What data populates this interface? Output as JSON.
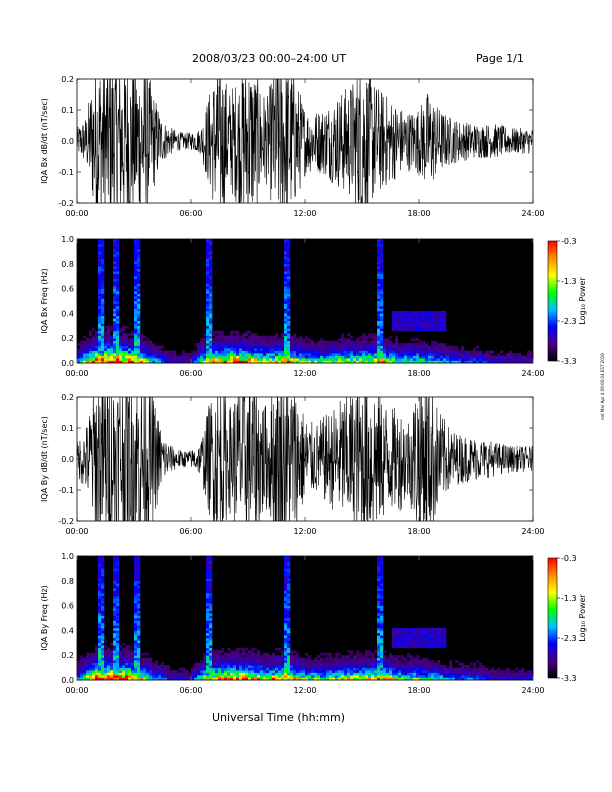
{
  "header": {
    "title": "2008/03/23  00:00–24:00 UT",
    "page": "Page 1/1"
  },
  "footer": {
    "xlabel": "Universal Time (hh:mm)"
  },
  "side_note": "not Mar Apr 4 09:00:04 EST 2019",
  "chart_data": [
    {
      "type": "line",
      "ylabel": "IQA Bx dB/dt (nT/sec)",
      "xlim": [
        "00:00",
        "24:00"
      ],
      "ylim": [
        -0.2,
        0.2
      ],
      "x_ticks": [
        "00:00",
        "06:00",
        "12:00",
        "18:00",
        "24:00"
      ],
      "y_ticks": [
        "-0.2",
        "-0.1",
        "0.0",
        "0.1",
        "0.2"
      ],
      "series_color": "#000000",
      "envelope": {
        "hours": [
          0.0,
          0.5,
          1.0,
          1.5,
          2.0,
          2.5,
          3.0,
          3.5,
          4.0,
          4.5,
          5.0,
          5.5,
          6.0,
          6.5,
          7.0,
          7.5,
          8.0,
          8.5,
          9.0,
          9.5,
          10.0,
          10.5,
          11.0,
          11.5,
          12.0,
          12.5,
          13.0,
          13.5,
          14.0,
          14.5,
          15.0,
          15.5,
          16.0,
          16.5,
          17.0,
          17.5,
          18.0,
          18.5,
          19.0,
          19.5,
          20.0,
          21.0,
          22.0,
          23.0,
          24.0
        ],
        "amplitude": [
          0.03,
          0.06,
          0.2,
          0.2,
          0.2,
          0.2,
          0.18,
          0.2,
          0.12,
          0.05,
          0.03,
          0.02,
          0.02,
          0.03,
          0.12,
          0.2,
          0.12,
          0.15,
          0.2,
          0.15,
          0.1,
          0.2,
          0.2,
          0.15,
          0.08,
          0.07,
          0.08,
          0.1,
          0.12,
          0.14,
          0.2,
          0.15,
          0.12,
          0.1,
          0.08,
          0.07,
          0.08,
          0.12,
          0.08,
          0.06,
          0.05,
          0.04,
          0.04,
          0.03,
          0.03
        ]
      }
    },
    {
      "type": "heatmap",
      "ylabel": "IQA Bx Freq (Hz)",
      "xlim": [
        "00:00",
        "24:00"
      ],
      "ylim": [
        0.0,
        1.0
      ],
      "x_ticks": [
        "00:00",
        "06:00",
        "12:00",
        "18:00",
        "24:00"
      ],
      "y_ticks": [
        "0.0",
        "0.2",
        "0.4",
        "0.6",
        "0.8",
        "1.0"
      ],
      "colorbar": {
        "label": "Log₁₀ Power",
        "ticks": [
          "-0.3",
          "-1.3",
          "-2.3",
          "-3.3"
        ],
        "range": [
          -3.3,
          -0.3
        ],
        "colors": [
          "#000000",
          "#4b0082",
          "#0000ff",
          "#00bfff",
          "#00ff00",
          "#ffff00",
          "#ff8c00",
          "#ff0000"
        ]
      },
      "activity": {
        "hours": [
          0,
          1,
          2,
          3,
          4,
          5,
          6,
          7,
          8,
          9,
          10,
          11,
          12,
          13,
          14,
          15,
          16,
          17,
          18,
          19,
          20,
          21,
          22,
          23,
          24
        ],
        "level": [
          0.3,
          0.9,
          1.0,
          0.8,
          0.4,
          0.2,
          0.2,
          0.7,
          0.8,
          0.8,
          0.6,
          0.8,
          0.5,
          0.5,
          0.6,
          0.6,
          0.7,
          0.5,
          0.5,
          0.4,
          0.3,
          0.3,
          0.2,
          0.2,
          0.2
        ]
      },
      "spikes_hours": [
        1.2,
        2.1,
        3.1,
        7.0,
        11.0,
        16.0
      ]
    },
    {
      "type": "line",
      "ylabel": "IQA By dB/dt (nT/sec)",
      "xlim": [
        "00:00",
        "24:00"
      ],
      "ylim": [
        -0.2,
        0.2
      ],
      "x_ticks": [
        "00:00",
        "06:00",
        "12:00",
        "18:00",
        "24:00"
      ],
      "y_ticks": [
        "-0.2",
        "-0.1",
        "0.0",
        "0.1",
        "0.2"
      ],
      "series_color": "#000000",
      "envelope": {
        "hours": [
          0.0,
          0.5,
          1.0,
          1.5,
          2.0,
          2.5,
          3.0,
          3.5,
          4.0,
          4.5,
          5.0,
          5.5,
          6.0,
          6.5,
          7.0,
          7.5,
          8.0,
          8.5,
          9.0,
          9.5,
          10.0,
          10.5,
          11.0,
          11.5,
          12.0,
          12.5,
          13.0,
          13.5,
          14.0,
          14.5,
          15.0,
          15.5,
          16.0,
          16.5,
          17.0,
          17.5,
          18.0,
          18.5,
          19.0,
          19.5,
          20.0,
          21.0,
          22.0,
          23.0,
          24.0
        ],
        "amplitude": [
          0.04,
          0.08,
          0.2,
          0.2,
          0.2,
          0.2,
          0.2,
          0.2,
          0.15,
          0.06,
          0.03,
          0.02,
          0.02,
          0.04,
          0.14,
          0.2,
          0.12,
          0.18,
          0.2,
          0.18,
          0.12,
          0.2,
          0.2,
          0.18,
          0.1,
          0.08,
          0.1,
          0.12,
          0.15,
          0.16,
          0.2,
          0.2,
          0.15,
          0.12,
          0.12,
          0.1,
          0.2,
          0.2,
          0.12,
          0.08,
          0.06,
          0.05,
          0.04,
          0.03,
          0.03
        ]
      }
    },
    {
      "type": "heatmap",
      "ylabel": "IQA By Freq (Hz)",
      "xlim": [
        "00:00",
        "24:00"
      ],
      "ylim": [
        0.0,
        1.0
      ],
      "x_ticks": [
        "00:00",
        "06:00",
        "12:00",
        "18:00",
        "24:00"
      ],
      "y_ticks": [
        "0.0",
        "0.2",
        "0.4",
        "0.6",
        "0.8",
        "1.0"
      ],
      "colorbar": {
        "label": "Log₁₀ Power",
        "ticks": [
          "-0.3",
          "-1.3",
          "-2.3",
          "-3.3"
        ],
        "range": [
          -3.3,
          -0.3
        ],
        "colors": [
          "#000000",
          "#4b0082",
          "#0000ff",
          "#00bfff",
          "#00ff00",
          "#ffff00",
          "#ff8c00",
          "#ff0000"
        ]
      },
      "activity": {
        "hours": [
          0,
          1,
          2,
          3,
          4,
          5,
          6,
          7,
          8,
          9,
          10,
          11,
          12,
          13,
          14,
          15,
          16,
          17,
          18,
          19,
          20,
          21,
          22,
          23,
          24
        ],
        "level": [
          0.3,
          0.9,
          1.0,
          0.8,
          0.4,
          0.2,
          0.2,
          0.7,
          0.8,
          0.8,
          0.6,
          0.8,
          0.5,
          0.5,
          0.6,
          0.6,
          0.7,
          0.5,
          0.5,
          0.4,
          0.3,
          0.3,
          0.2,
          0.2,
          0.2
        ]
      },
      "spikes_hours": [
        1.2,
        2.1,
        3.1,
        7.0,
        11.0,
        16.0
      ]
    }
  ]
}
